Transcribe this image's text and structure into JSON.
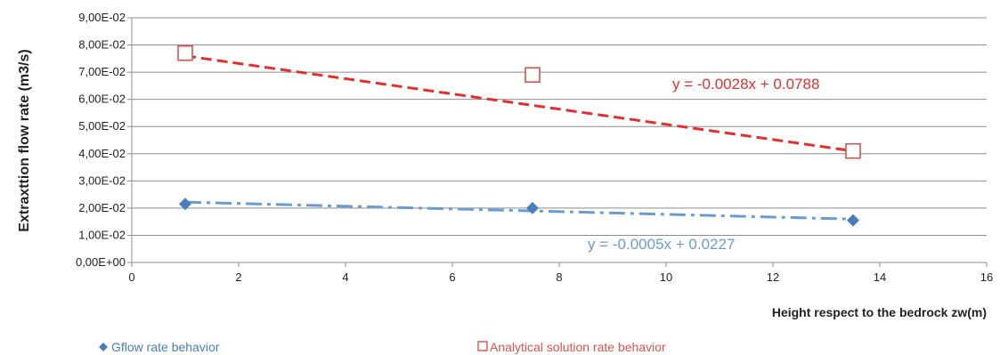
{
  "chart_data": {
    "type": "scatter",
    "xlabel": "Height respect to the bedrock zw(m)",
    "ylabel": "Extraxttion flow rate (m3/s)",
    "xlim": [
      0,
      16
    ],
    "ylim": [
      0,
      0.09
    ],
    "x_ticks": [
      0,
      2,
      4,
      6,
      8,
      10,
      12,
      14,
      16
    ],
    "x_tick_labels": [
      "0",
      "2",
      "4",
      "6",
      "8",
      "10",
      "12",
      "14",
      "16"
    ],
    "y_ticks": [
      0,
      0.01,
      0.02,
      0.03,
      0.04,
      0.05,
      0.06,
      0.07,
      0.08,
      0.09
    ],
    "y_tick_labels": [
      "0,00E+00",
      "1,00E-02",
      "2,00E-02",
      "3,00E-02",
      "4,00E-02",
      "5,00E-02",
      "6,00E-02",
      "7,00E-02",
      "8,00E-02",
      "9,00E-02"
    ],
    "grid": "horizontal",
    "legend_position": "bottom",
    "series": [
      {
        "name": "Gflow rate behavior",
        "marker": "diamond",
        "color": "#4a7ebb",
        "x": [
          1,
          7.5,
          13.5
        ],
        "y": [
          0.0215,
          0.02,
          0.0155
        ],
        "trendline": {
          "slope": -0.0005,
          "intercept": 0.0227,
          "style": "dash-dot",
          "color": "#6c9bd2",
          "equation": "y = -0.0005x + 0.0227"
        }
      },
      {
        "name": "Analytical solution rate behavior",
        "marker": "square-open",
        "color": "#d9534f",
        "x": [
          1,
          7.5,
          13.5
        ],
        "y": [
          0.077,
          0.069,
          0.041
        ],
        "trendline": {
          "slope": -0.0028,
          "intercept": 0.0788,
          "style": "dashed",
          "color": "#e03030",
          "equation": "y = -0.0028x + 0.0788"
        }
      }
    ]
  }
}
